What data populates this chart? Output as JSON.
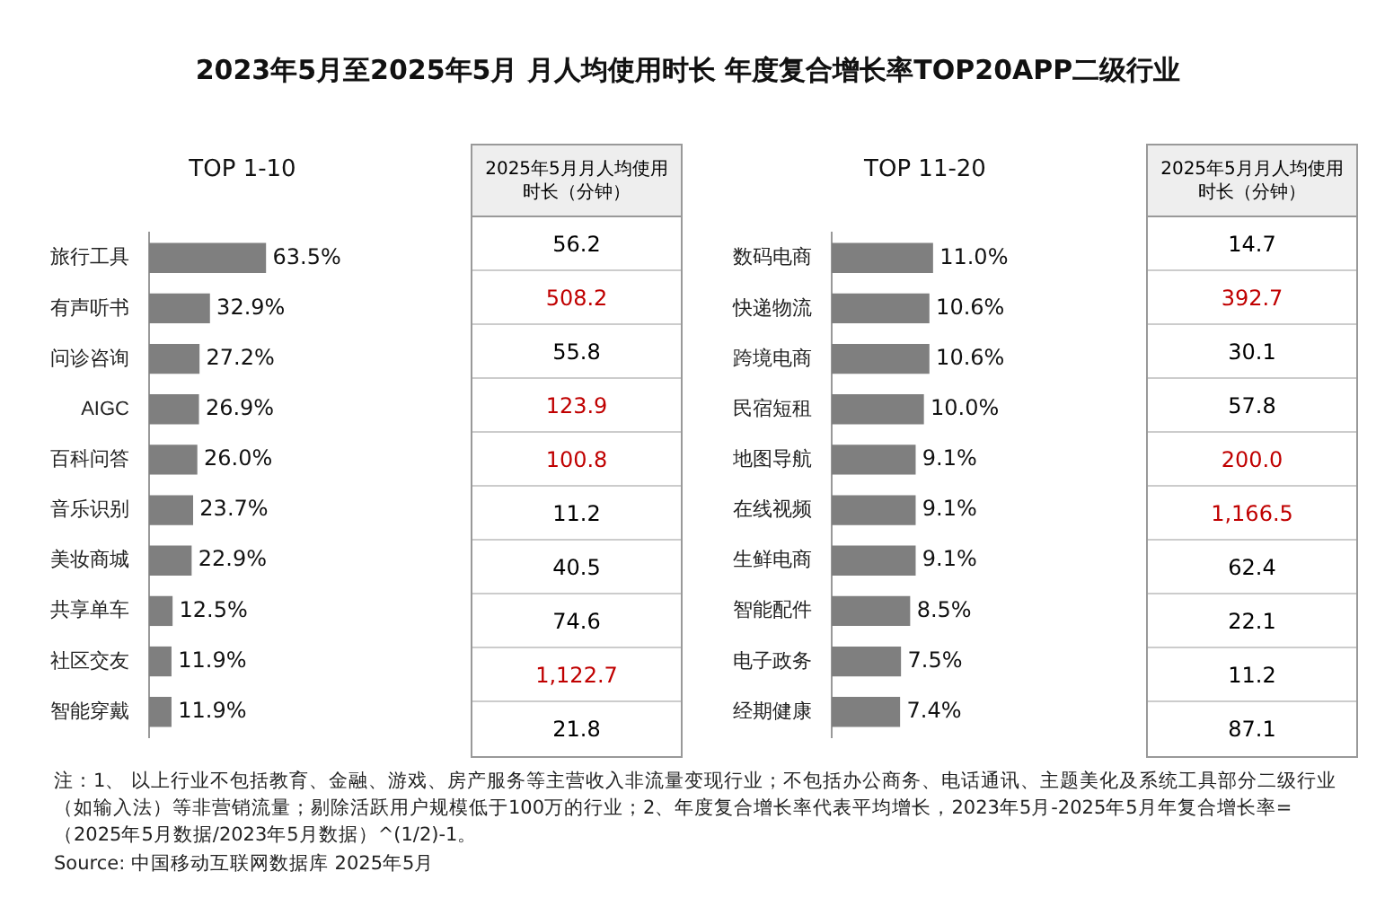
{
  "chart_data": [
    {
      "type": "bar",
      "orientation": "horizontal",
      "title": "2023年5月至2025年5月 月人均使用时长 年度复合增长率TOP20APP二级行业",
      "subtitle": "TOP 1-10",
      "categories": [
        "旅行工具",
        "有声听书",
        "问诊咨询",
        "AIGC",
        "百科问答",
        "音乐识别",
        "美妆商城",
        "共享单车",
        "社区交友",
        "智能穿戴"
      ],
      "values": [
        63.5,
        32.9,
        27.2,
        26.9,
        26.0,
        23.7,
        22.9,
        12.5,
        11.9,
        11.9
      ],
      "value_labels": [
        "63.5%",
        "32.9%",
        "27.2%",
        "26.9%",
        "26.0%",
        "23.7%",
        "22.9%",
        "12.5%",
        "11.9%",
        "11.9%"
      ],
      "color": "#7f7f7f",
      "annotations": [
        "注：1、 以上行业不包括教育、金融、游戏、房产服务等主营收入非流量变现行业；不包括办公商务、电话通讯、主题美化及系统工具部分二级行业（如输入法）等非营销流量；剔除活跃用户规模低于100万的行业；2、年度复合增长率代表平均增长，2023年5月-2025年5月年复合增长率=（2025年5月数据/2023年5月数据）^(1/2)-1。",
        "Source: 中国移动互联网数据库 2025年5月"
      ]
    },
    {
      "type": "other",
      "title": "2025年5月月人均使用时长（分钟）",
      "values": [
        56.2,
        508.2,
        55.8,
        123.9,
        100.8,
        11.2,
        40.5,
        74.6,
        1122.7,
        21.8
      ],
      "value_labels": [
        "56.2",
        "508.2",
        "55.8",
        "123.9",
        "100.8",
        "11.2",
        "40.5",
        "74.6",
        "1,122.7",
        "21.8"
      ],
      "colors": [
        "#000000",
        "#c00000",
        "#000000",
        "#c00000",
        "#c00000",
        "#000000",
        "#000000",
        "#000000",
        "#c00000",
        "#000000"
      ]
    },
    {
      "type": "bar",
      "orientation": "horizontal",
      "subtitle": "TOP 11-20",
      "categories": [
        "数码电商",
        "快递物流",
        "跨境电商",
        "民宿短租",
        "地图导航",
        "在线视频",
        "生鲜电商",
        "智能配件",
        "电子政务",
        "经期健康"
      ],
      "values": [
        11.0,
        10.6,
        10.6,
        10.0,
        9.1,
        9.1,
        9.1,
        8.5,
        7.5,
        7.4
      ],
      "value_labels": [
        "11.0%",
        "10.6%",
        "10.6%",
        "10.0%",
        "9.1%",
        "9.1%",
        "9.1%",
        "8.5%",
        "7.5%",
        "7.4%"
      ],
      "color": "#7f7f7f"
    },
    {
      "type": "other",
      "title": "2025年5月月人均使用时长（分钟）",
      "values": [
        14.7,
        392.7,
        30.1,
        57.8,
        200.0,
        1166.5,
        62.4,
        22.1,
        11.2,
        87.1
      ],
      "value_labels": [
        "14.7",
        "392.7",
        "30.1",
        "57.8",
        "200.0",
        "1,166.5",
        "62.4",
        "22.1",
        "11.2",
        "87.1"
      ],
      "colors": [
        "#000000",
        "#c00000",
        "#000000",
        "#000000",
        "#c00000",
        "#c00000",
        "#000000",
        "#000000",
        "#000000",
        "#000000"
      ]
    }
  ]
}
